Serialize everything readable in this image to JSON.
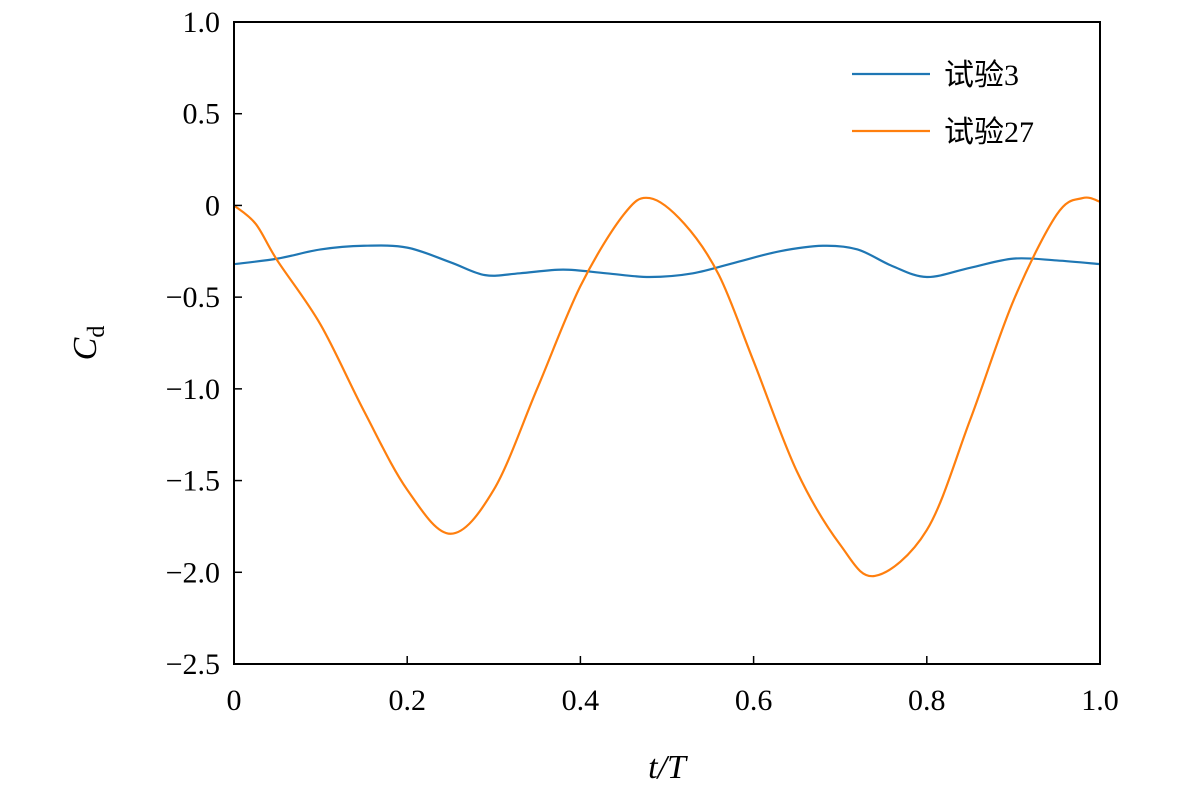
{
  "chart_data": {
    "type": "line",
    "title": "",
    "xlabel": "t/T",
    "xlabel_parts": {
      "var": "t",
      "sep": "/",
      "var2": "T"
    },
    "ylabel": "Cd",
    "ylabel_parts": {
      "main": "C",
      "sub": "d"
    },
    "xlim": [
      0,
      1.0
    ],
    "ylim": [
      -2.5,
      1.0
    ],
    "xticks": [
      0,
      0.2,
      0.4,
      0.6,
      0.8,
      1.0
    ],
    "xtick_labels": [
      "0",
      "0.2",
      "0.4",
      "0.6",
      "0.8",
      "1.0"
    ],
    "yticks": [
      1.0,
      0.5,
      0,
      -0.5,
      -1.0,
      -1.5,
      -2.0,
      -2.5
    ],
    "ytick_labels": [
      "1.0",
      "0.5",
      "0",
      "−0.5",
      "−1.0",
      "−1.5",
      "−2.0",
      "−2.5"
    ],
    "grid": false,
    "legend_position": "top-right",
    "series": [
      {
        "name": "试验3",
        "color": "#1f77b4",
        "x": [
          0,
          0.05,
          0.1,
          0.15,
          0.2,
          0.25,
          0.29,
          0.33,
          0.38,
          0.43,
          0.48,
          0.53,
          0.58,
          0.63,
          0.68,
          0.72,
          0.76,
          0.8,
          0.85,
          0.9,
          0.95,
          1.0
        ],
        "y": [
          -0.32,
          -0.29,
          -0.24,
          -0.22,
          -0.23,
          -0.31,
          -0.38,
          -0.37,
          -0.35,
          -0.37,
          -0.39,
          -0.37,
          -0.31,
          -0.25,
          -0.22,
          -0.24,
          -0.33,
          -0.39,
          -0.34,
          -0.29,
          -0.3,
          -0.32
        ]
      },
      {
        "name": "试验27",
        "color": "#ff7f0e",
        "x": [
          0,
          0.025,
          0.05,
          0.1,
          0.15,
          0.2,
          0.25,
          0.3,
          0.35,
          0.4,
          0.45,
          0.48,
          0.52,
          0.56,
          0.6,
          0.65,
          0.7,
          0.74,
          0.8,
          0.85,
          0.9,
          0.95,
          0.98,
          1.0
        ],
        "y": [
          0,
          -0.1,
          -0.3,
          -0.65,
          -1.12,
          -1.55,
          -1.79,
          -1.55,
          -1.0,
          -0.44,
          -0.05,
          0.04,
          -0.1,
          -0.38,
          -0.85,
          -1.45,
          -1.85,
          -2.02,
          -1.77,
          -1.17,
          -0.52,
          -0.05,
          0.04,
          0.02
        ]
      }
    ]
  }
}
